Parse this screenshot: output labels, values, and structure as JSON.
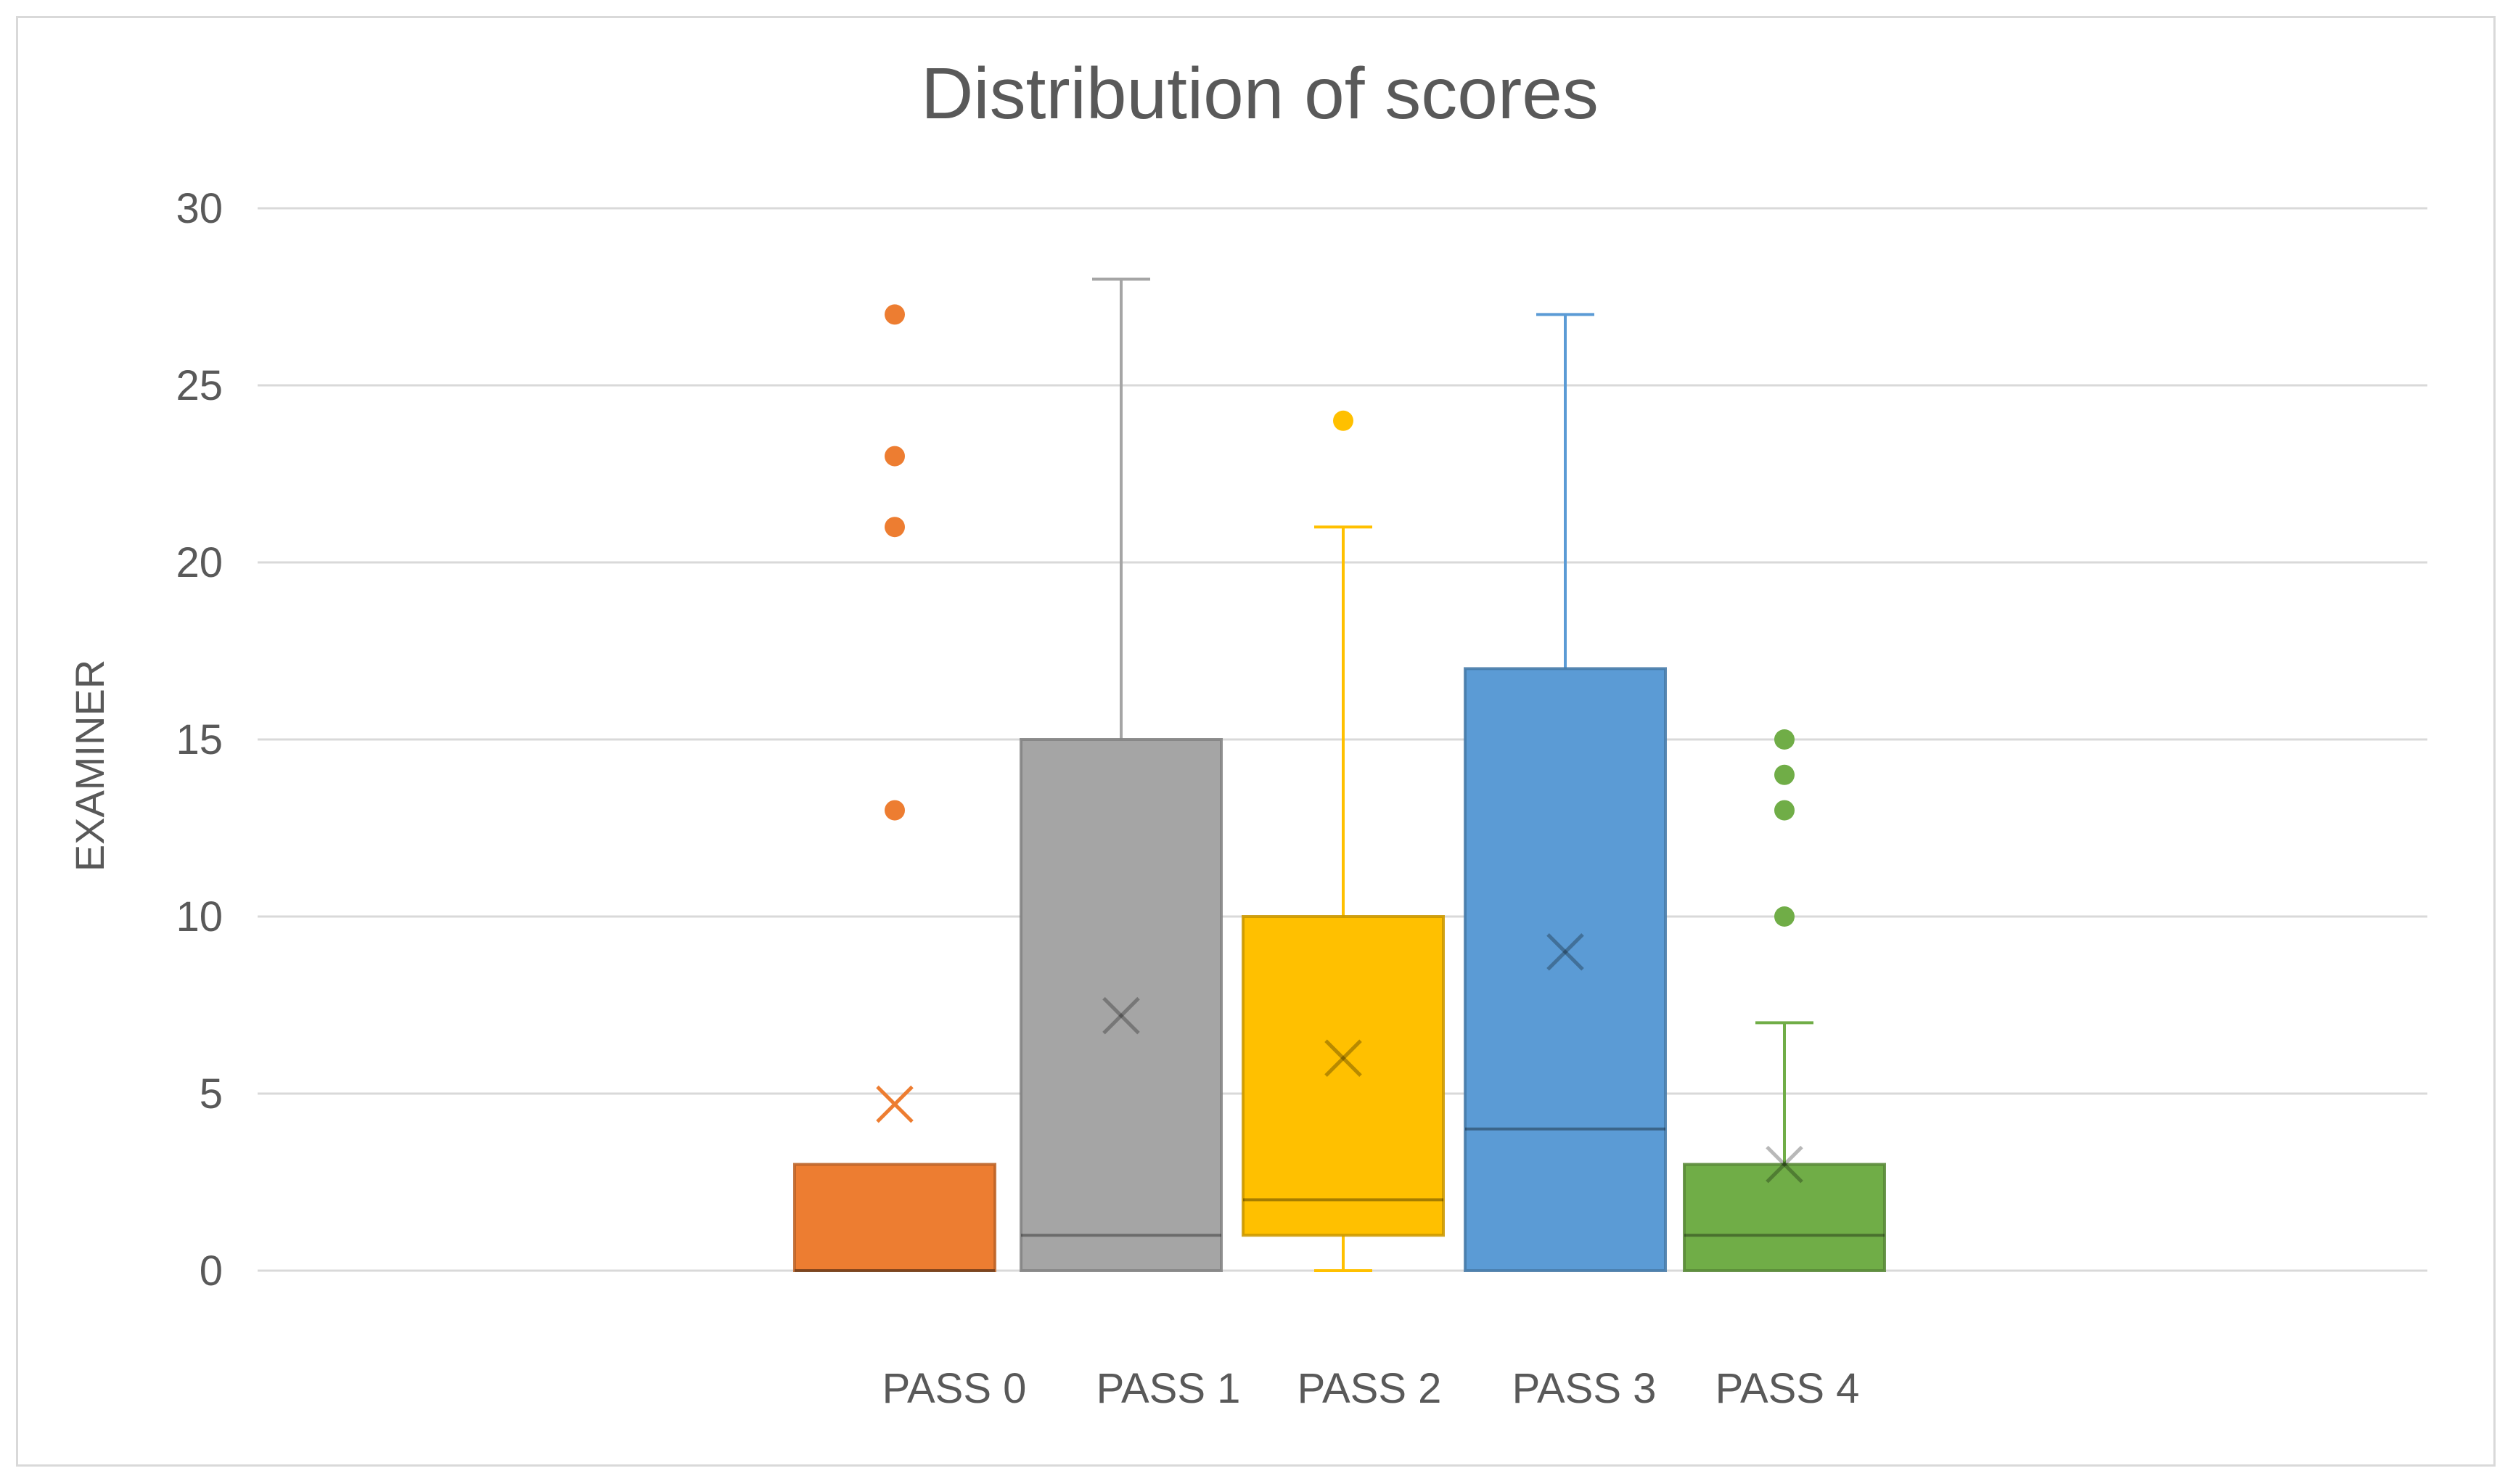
{
  "chart_data": {
    "type": "box",
    "title": "Distribution of scores",
    "xlabel": "",
    "ylabel": "EXAMINER",
    "ylim": [
      0,
      30
    ],
    "yticks": [
      "0",
      "5",
      "10",
      "15",
      "20",
      "25",
      "30"
    ],
    "grid": true,
    "categories": [
      "PASS 0",
      "PASS 1",
      "PASS 2",
      "PASS 3",
      "PASS 4"
    ],
    "series": [
      {
        "color": "#ED7D31",
        "min": 0,
        "q1": 0,
        "median": 0,
        "q3": 3,
        "max": 3,
        "mean": 4.7,
        "outliers": [
          13,
          21,
          23,
          27
        ]
      },
      {
        "color": "#A5A5A5",
        "min": 0,
        "q1": 0,
        "median": 1,
        "q3": 15,
        "max": 28,
        "mean": 7.2,
        "outliers": []
      },
      {
        "color": "#FFC000",
        "min": 0,
        "q1": 1,
        "median": 2,
        "q3": 10,
        "max": 21,
        "mean": 6.0,
        "outliers": [
          24
        ]
      },
      {
        "color": "#5B9BD5",
        "min": 0,
        "q1": 0,
        "median": 4,
        "q3": 17,
        "max": 27,
        "mean": 9.0,
        "outliers": []
      },
      {
        "color": "#70AD47",
        "min": 0,
        "q1": 0,
        "median": 1,
        "q3": 3,
        "max": 7,
        "mean": 3.0,
        "outliers": [
          10,
          13,
          14,
          15
        ]
      }
    ]
  }
}
